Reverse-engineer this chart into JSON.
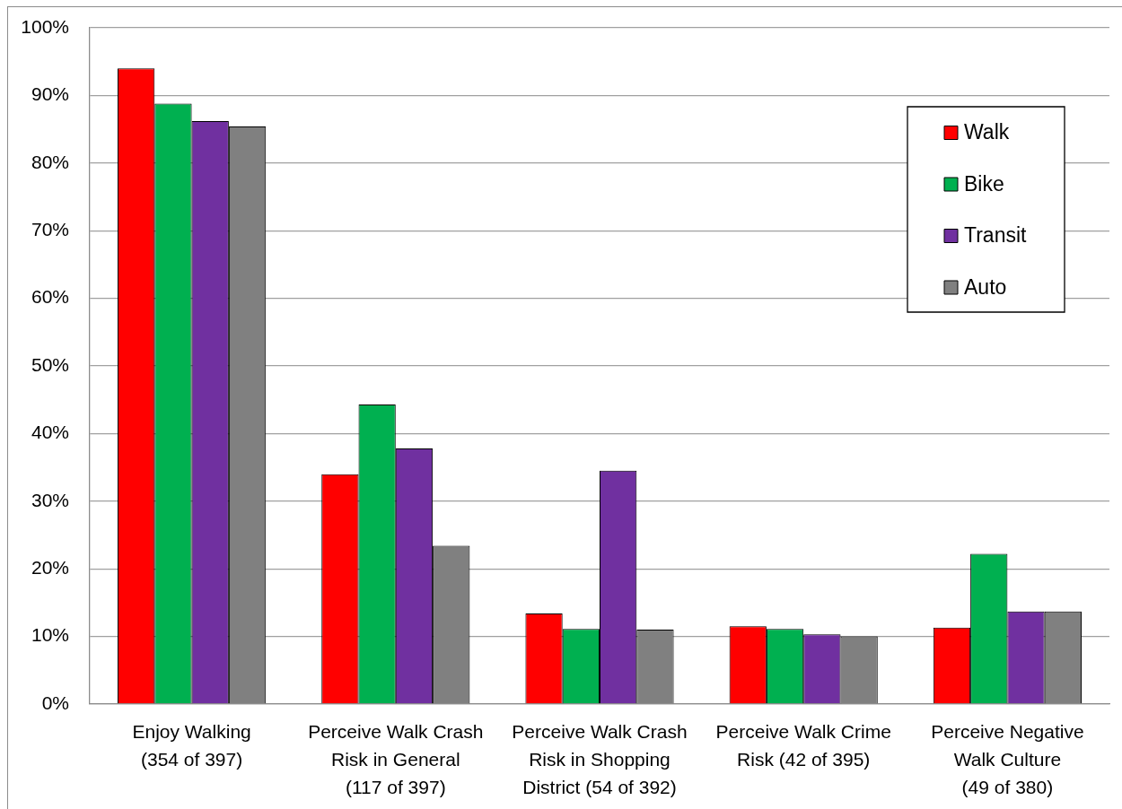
{
  "chart_data": {
    "type": "bar",
    "categories": [
      "Enjoy Walking\n(354 of 397)",
      "Perceive Walk Crash\nRisk in General\n(117 of 397)",
      "Perceive Walk Crash\nRisk in Shopping\nDistrict (54 of 392)",
      "Perceive Walk Crime\nRisk (42 of 395)",
      "Perceive Negative\nWalk Culture\n(49 of 380)"
    ],
    "series": [
      {
        "name": "Walk",
        "color": "#ff0000",
        "values": [
          94.0,
          34.0,
          13.4,
          11.5,
          11.3
        ]
      },
      {
        "name": "Bike",
        "color": "#00b050",
        "values": [
          88.8,
          44.3,
          11.1,
          11.1,
          22.2
        ]
      },
      {
        "name": "Transit",
        "color": "#7030a0",
        "values": [
          86.2,
          37.8,
          34.5,
          10.3,
          13.7
        ]
      },
      {
        "name": "Auto",
        "color": "#808080",
        "values": [
          85.4,
          23.4,
          11.0,
          10.0,
          13.7
        ]
      }
    ],
    "ylim": [
      0,
      100
    ],
    "yticks": [
      {
        "value": 0,
        "label": "0%"
      },
      {
        "value": 10,
        "label": "10%"
      },
      {
        "value": 20,
        "label": "20%"
      },
      {
        "value": 30,
        "label": "30%"
      },
      {
        "value": 40,
        "label": "40%"
      },
      {
        "value": 50,
        "label": "50%"
      },
      {
        "value": 60,
        "label": "60%"
      },
      {
        "value": 70,
        "label": "70%"
      },
      {
        "value": 80,
        "label": "80%"
      },
      {
        "value": 90,
        "label": "90%"
      },
      {
        "value": 100,
        "label": "100%"
      }
    ],
    "grid": "y",
    "legend": "top right"
  }
}
